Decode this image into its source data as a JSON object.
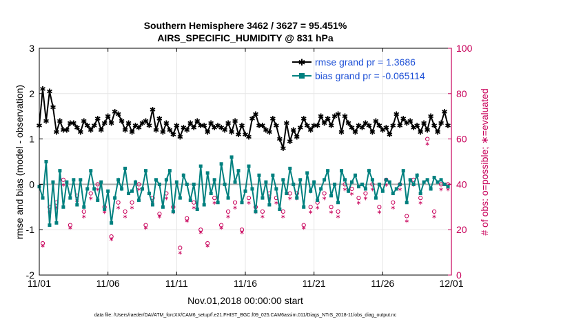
{
  "chart_data": {
    "type": "line",
    "title_line1": "Southern Hemisphere 3462 / 3627 = 95.451%",
    "title_line2": "AIRS_SPECIFIC_HUMIDITY @ 831 hPa",
    "xlabel": "Nov.01,2018 00:00:00 start",
    "ylabel": "rmse and bias (model - observation)",
    "ylabel_right": "# of obs: o=possible; ∗=evaluated",
    "footer": "data file: /Users/raeder/DAI/ATM_forcXX/CAM6_setup/f.e21.FHIST_BGC.f09_025.CAM6assim.011/Diags_NTrS_2018-11/obs_diag_output.nc",
    "xlim": [
      0,
      30
    ],
    "ylim": [
      -2,
      3
    ],
    "ylim_right": [
      0,
      100
    ],
    "x_ticks": [
      0,
      5,
      10,
      15,
      20,
      25,
      30
    ],
    "x_tick_labels": [
      "11/01",
      "11/06",
      "11/11",
      "11/16",
      "11/21",
      "11/26",
      "12/01"
    ],
    "y_ticks": [
      -2,
      -1,
      0,
      1,
      2,
      3
    ],
    "y_tick_labels": [
      "-2",
      "-1",
      "0",
      "1",
      "2",
      "3"
    ],
    "y_ticks_right": [
      0,
      20,
      40,
      60,
      80,
      100
    ],
    "y_tick_labels_right": [
      "0",
      "20",
      "40",
      "60",
      "80",
      "100"
    ],
    "legend": [
      "rmse grand pr = 1.3686",
      "bias grand pr = -0.065114"
    ],
    "colors": {
      "rmse": "#000000",
      "bias": "#00807f",
      "obs": "#c8005a",
      "zero": "#aaaaaa"
    },
    "series": [
      {
        "name": "rmse",
        "x": [
          0.0,
          0.25,
          0.5,
          0.75,
          1.0,
          1.25,
          1.5,
          1.75,
          2.0,
          2.25,
          2.5,
          2.75,
          3.0,
          3.25,
          3.5,
          3.75,
          4.0,
          4.25,
          4.5,
          4.75,
          5.0,
          5.25,
          5.5,
          5.75,
          6.0,
          6.25,
          6.5,
          6.75,
          7.0,
          7.25,
          7.5,
          7.75,
          8.0,
          8.25,
          8.5,
          8.75,
          9.0,
          9.25,
          9.5,
          9.75,
          10.0,
          10.25,
          10.5,
          10.75,
          11.0,
          11.25,
          11.5,
          11.75,
          12.0,
          12.25,
          12.5,
          12.75,
          13.0,
          13.25,
          13.5,
          13.75,
          14.0,
          14.25,
          14.5,
          14.75,
          15.0,
          15.25,
          15.5,
          15.75,
          16.0,
          16.25,
          16.5,
          16.75,
          17.0,
          17.25,
          17.5,
          17.75,
          18.0,
          18.25,
          18.5,
          18.75,
          19.0,
          19.25,
          19.5,
          19.75,
          20.0,
          20.25,
          20.5,
          20.75,
          21.0,
          21.25,
          21.5,
          21.75,
          22.0,
          22.25,
          22.5,
          22.75,
          23.0,
          23.25,
          23.5,
          23.75,
          24.0,
          24.25,
          24.5,
          24.75,
          25.0,
          25.25,
          25.5,
          25.75,
          26.0,
          26.25,
          26.5,
          26.75,
          27.0,
          27.25,
          27.5,
          27.75,
          28.0,
          28.25,
          28.5,
          28.75,
          29.0,
          29.25,
          29.5,
          29.75
        ],
        "values": [
          1.3,
          2.1,
          1.4,
          2.05,
          1.7,
          1.15,
          1.4,
          1.2,
          1.2,
          1.35,
          1.35,
          1.25,
          1.15,
          1.4,
          1.3,
          1.2,
          1.3,
          1.45,
          1.2,
          1.35,
          1.5,
          1.35,
          1.6,
          1.55,
          1.4,
          1.2,
          1.35,
          1.15,
          1.3,
          1.25,
          1.35,
          1.4,
          1.3,
          1.65,
          1.2,
          1.45,
          1.15,
          1.35,
          1.2,
          1.1,
          1.3,
          1.05,
          1.25,
          1.2,
          1.35,
          1.25,
          1.4,
          1.3,
          1.3,
          1.15,
          1.35,
          1.25,
          1.3,
          1.25,
          1.2,
          1.35,
          1.15,
          1.4,
          1.1,
          1.3,
          1.1,
          1.05,
          1.45,
          1.55,
          1.3,
          1.3,
          1.2,
          1.15,
          1.45,
          1.3,
          1.0,
          0.8,
          1.35,
          0.95,
          1.2,
          1.05,
          1.25,
          1.45,
          1.3,
          1.2,
          1.3,
          1.3,
          1.5,
          1.35,
          1.45,
          1.3,
          1.5,
          1.55,
          1.15,
          1.5,
          1.35,
          1.25,
          1.15,
          1.3,
          1.25,
          1.35,
          1.3,
          1.15,
          1.4,
          1.3,
          1.2,
          1.25,
          1.1,
          1.3,
          1.55,
          1.3,
          1.45,
          1.35,
          1.4,
          1.25,
          1.3,
          1.15,
          1.35,
          1.2,
          1.5,
          1.3,
          1.15,
          1.35,
          1.6,
          1.3
        ]
      },
      {
        "name": "bias",
        "x": [
          0.0,
          0.25,
          0.5,
          0.75,
          1.0,
          1.25,
          1.5,
          1.75,
          2.0,
          2.25,
          2.5,
          2.75,
          3.0,
          3.25,
          3.5,
          3.75,
          4.0,
          4.25,
          4.5,
          4.75,
          5.0,
          5.25,
          5.5,
          5.75,
          6.0,
          6.25,
          6.5,
          6.75,
          7.0,
          7.25,
          7.5,
          7.75,
          8.0,
          8.25,
          8.5,
          8.75,
          9.0,
          9.25,
          9.5,
          9.75,
          10.0,
          10.25,
          10.5,
          10.75,
          11.0,
          11.25,
          11.5,
          11.75,
          12.0,
          12.25,
          12.5,
          12.75,
          13.0,
          13.25,
          13.5,
          13.75,
          14.0,
          14.25,
          14.5,
          14.75,
          15.0,
          15.25,
          15.5,
          15.75,
          16.0,
          16.25,
          16.5,
          16.75,
          17.0,
          17.25,
          17.5,
          17.75,
          18.0,
          18.25,
          18.5,
          18.75,
          19.0,
          19.25,
          19.5,
          19.75,
          20.0,
          20.25,
          20.5,
          20.75,
          21.0,
          21.25,
          21.5,
          21.75,
          22.0,
          22.25,
          22.5,
          22.75,
          23.0,
          23.25,
          23.5,
          23.75,
          24.0,
          24.25,
          24.5,
          24.75,
          25.0,
          25.25,
          25.5,
          25.75,
          26.0,
          26.25,
          26.5,
          26.75,
          27.0,
          27.25,
          27.5,
          27.75,
          28.0,
          28.25,
          28.5,
          28.75,
          29.0,
          29.25,
          29.5,
          29.75
        ],
        "values": [
          -0.05,
          -0.3,
          0.5,
          -0.9,
          0.05,
          -0.85,
          0.3,
          -0.5,
          0.05,
          -0.3,
          0.1,
          -0.45,
          0.1,
          -0.5,
          -0.1,
          0.3,
          -0.1,
          -0.35,
          0.05,
          -0.55,
          -0.15,
          -0.85,
          -0.3,
          0.1,
          -0.1,
          0.35,
          -0.2,
          -0.15,
          0.05,
          -0.35,
          -0.1,
          0.3,
          -0.2,
          -0.45,
          0.1,
          0.0,
          -0.5,
          0.1,
          0.3,
          -0.6,
          0.05,
          -0.3,
          0.2,
          0.0,
          -0.35,
          0.0,
          -0.55,
          0.4,
          -0.45,
          0.25,
          -0.2,
          0.1,
          -0.4,
          0.45,
          0.0,
          -0.3,
          0.6,
          0.05,
          0.3,
          -0.4,
          -0.15,
          0.4,
          -0.1,
          -0.6,
          0.2,
          -0.3,
          0.05,
          -0.45,
          0.2,
          -0.1,
          -0.55,
          0.1,
          -0.2,
          0.35,
          0.0,
          -0.3,
          0.1,
          -0.5,
          0.25,
          -0.15,
          0.05,
          -0.35,
          -0.1,
          0.1,
          0.3,
          -0.25,
          0.0,
          -0.4,
          0.3,
          0.1,
          -0.15,
          0.05,
          0.2,
          -0.05,
          0.0,
          -0.1,
          0.3,
          0.1,
          -0.3,
          0.0,
          -0.15,
          0.1,
          0.05,
          -0.2,
          -0.1,
          0.0,
          0.3,
          -0.4,
          0.1,
          0.0,
          0.2,
          -0.2,
          0.05,
          0.1,
          -0.1,
          0.15,
          0.05,
          0.1,
          0.0,
          -0.05
        ]
      },
      {
        "name": "obs_possible",
        "axis": "right",
        "x": [
          0.25,
          0.75,
          1.25,
          1.75,
          2.25,
          2.75,
          3.25,
          3.75,
          4.25,
          4.75,
          5.25,
          5.75,
          6.25,
          6.75,
          7.25,
          7.75,
          8.25,
          8.75,
          9.25,
          9.75,
          10.25,
          10.75,
          11.25,
          11.75,
          12.25,
          12.75,
          13.25,
          13.75,
          14.25,
          14.75,
          15.25,
          15.75,
          16.25,
          16.75,
          17.25,
          17.75,
          18.25,
          18.75,
          19.25,
          19.75,
          20.25,
          20.75,
          21.25,
          21.75,
          22.25,
          22.75,
          23.25,
          23.75,
          24.25,
          24.75,
          25.25,
          25.75,
          26.25,
          26.75,
          27.25,
          27.75,
          28.25,
          28.75,
          29.25,
          29.75
        ],
        "values": [
          14,
          30,
          32,
          42,
          22,
          35,
          28,
          36,
          40,
          30,
          17,
          32,
          28,
          32,
          40,
          22,
          34,
          27,
          36,
          30,
          12,
          25,
          32,
          20,
          14,
          34,
          22,
          28,
          32,
          20,
          34,
          30,
          28,
          36,
          34,
          28,
          36,
          36,
          22,
          30,
          32,
          36,
          30,
          28,
          40,
          38,
          34,
          36,
          40,
          30,
          42,
          32,
          40,
          26,
          42,
          34,
          60,
          28,
          40,
          40
        ]
      },
      {
        "name": "obs_evaluated",
        "axis": "right",
        "x": [
          0.25,
          0.75,
          1.25,
          1.75,
          2.25,
          2.75,
          3.25,
          3.75,
          4.25,
          4.75,
          5.25,
          5.75,
          6.25,
          6.75,
          7.25,
          7.75,
          8.25,
          8.75,
          9.25,
          9.75,
          10.25,
          10.75,
          11.25,
          11.75,
          12.25,
          12.75,
          13.25,
          13.75,
          14.25,
          14.75,
          15.25,
          15.75,
          16.25,
          16.75,
          17.25,
          17.75,
          18.25,
          18.75,
          19.25,
          19.75,
          20.25,
          20.75,
          21.25,
          21.75,
          22.25,
          22.75,
          23.25,
          23.75,
          24.25,
          24.75,
          25.25,
          25.75,
          26.25,
          26.75,
          27.25,
          27.75,
          28.25,
          28.75,
          29.25,
          29.75
        ],
        "values": [
          13,
          28,
          30,
          40,
          21,
          33,
          26,
          34,
          38,
          28,
          16,
          30,
          26,
          30,
          38,
          21,
          32,
          26,
          34,
          28,
          10,
          24,
          30,
          19,
          13,
          32,
          21,
          26,
          30,
          19,
          32,
          28,
          26,
          34,
          32,
          26,
          34,
          34,
          21,
          28,
          30,
          34,
          28,
          26,
          38,
          36,
          32,
          34,
          38,
          28,
          40,
          30,
          38,
          24,
          40,
          32,
          58,
          26,
          38,
          38
        ]
      }
    ]
  }
}
